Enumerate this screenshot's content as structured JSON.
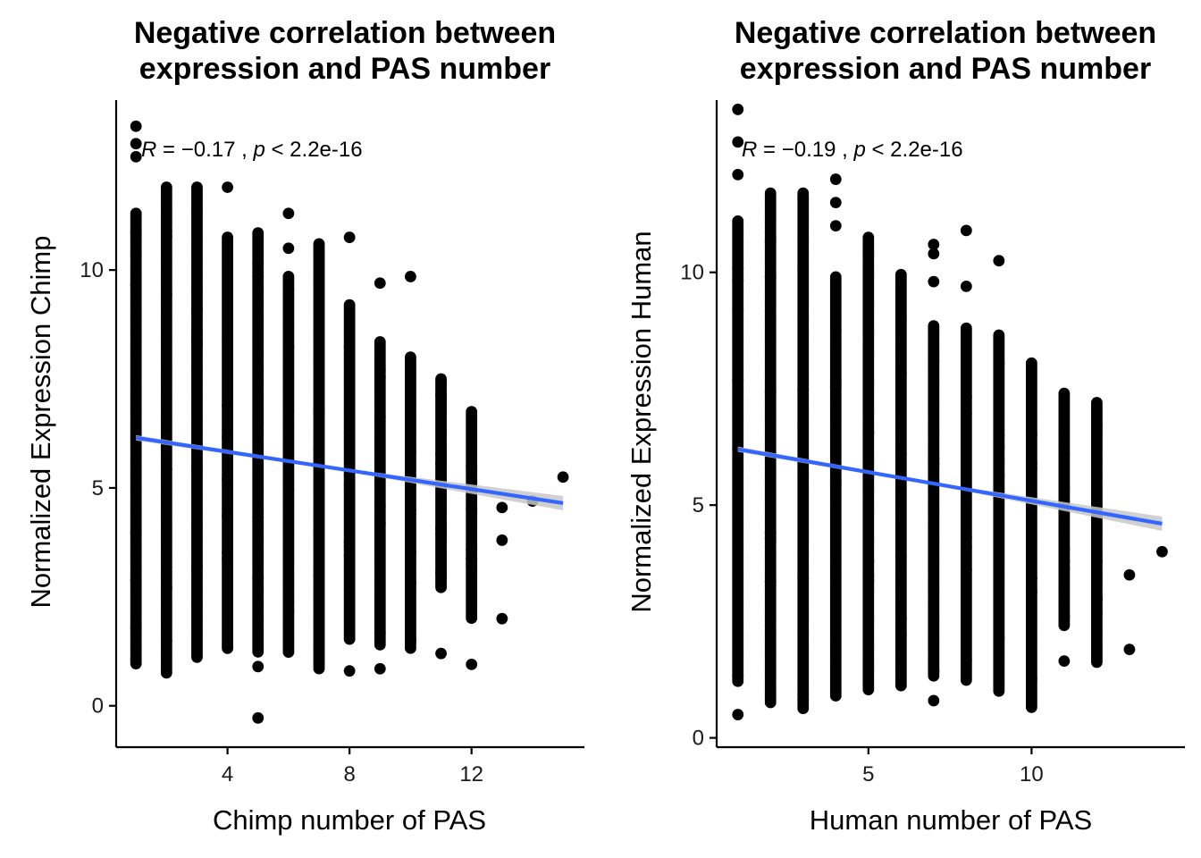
{
  "chart_data": [
    {
      "type": "scatter",
      "title": [
        "Negative correlation between",
        "expression and PAS number"
      ],
      "xlabel": "Chimp number of PAS",
      "ylabel": "Normalized Expression Chimp",
      "xlim": [
        0.35,
        15.7
      ],
      "ylim": [
        -0.95,
        13.9
      ],
      "xticks": [
        4,
        8,
        12
      ],
      "yticks": [
        0,
        5,
        10
      ],
      "annotation": {
        "r": "−0.17",
        "p": "2.2e-16"
      },
      "grid": false,
      "legend": "none",
      "point_color": "#000000",
      "fit_color": "#3366FF",
      "fit_line": {
        "x": [
          1,
          15
        ],
        "y": [
          6.15,
          4.65
        ]
      },
      "columns": [
        {
          "x": 1,
          "min": 0.95,
          "max": 11.3,
          "outliers": [
            1.05,
            12.6,
            12.9,
            13.3
          ]
        },
        {
          "x": 2,
          "min": 0.75,
          "max": 11.9,
          "outliers": []
        },
        {
          "x": 3,
          "min": 1.1,
          "max": 11.9,
          "outliers": []
        },
        {
          "x": 4,
          "min": 1.3,
          "max": 10.75,
          "outliers": [
            11.9
          ]
        },
        {
          "x": 5,
          "min": 1.2,
          "max": 10.85,
          "outliers": [
            0.9,
            -0.28
          ]
        },
        {
          "x": 6,
          "min": 1.2,
          "max": 9.85,
          "outliers": [
            10.5,
            11.3
          ]
        },
        {
          "x": 7,
          "min": 0.85,
          "max": 10.6,
          "outliers": []
        },
        {
          "x": 8,
          "min": 1.5,
          "max": 9.2,
          "outliers": [
            0.8,
            10.75
          ]
        },
        {
          "x": 9,
          "min": 1.4,
          "max": 8.35,
          "outliers": [
            0.85,
            9.7
          ]
        },
        {
          "x": 10,
          "min": 1.3,
          "max": 8.0,
          "outliers": [
            9.85
          ]
        },
        {
          "x": 11,
          "min": 2.7,
          "max": 7.5,
          "outliers": [
            1.2
          ]
        },
        {
          "x": 12,
          "min": 2.0,
          "max": 6.75,
          "outliers": [
            0.95
          ]
        }
      ],
      "points": [
        [
          13,
          4.55
        ],
        [
          13,
          3.8
        ],
        [
          13,
          2.0
        ],
        [
          14,
          4.7
        ],
        [
          15,
          5.25
        ]
      ]
    },
    {
      "type": "scatter",
      "title": [
        "Negative correlation between",
        "expression and PAS number"
      ],
      "xlabel": "Human number of PAS",
      "ylabel": "Normalized Expression Human",
      "xlim": [
        0.35,
        14.7
      ],
      "ylim": [
        -0.2,
        13.7
      ],
      "xticks": [
        5,
        10
      ],
      "yticks": [
        0,
        5,
        10
      ],
      "annotation": {
        "r": "−0.19",
        "p": "2.2e-16"
      },
      "grid": false,
      "legend": "none",
      "point_color": "#000000",
      "fit_color": "#3366FF",
      "fit_line": {
        "x": [
          1,
          14
        ],
        "y": [
          6.2,
          4.6
        ]
      },
      "columns": [
        {
          "x": 1,
          "min": 1.2,
          "max": 11.1,
          "outliers": [
            0.5,
            12.1,
            12.8,
            13.5
          ]
        },
        {
          "x": 2,
          "min": 0.75,
          "max": 11.7,
          "outliers": []
        },
        {
          "x": 3,
          "min": 0.6,
          "max": 11.7,
          "outliers": []
        },
        {
          "x": 4,
          "min": 0.9,
          "max": 9.9,
          "outliers": [
            11.0,
            11.5,
            12.0
          ]
        },
        {
          "x": 5,
          "min": 1.0,
          "max": 10.75,
          "outliers": []
        },
        {
          "x": 6,
          "min": 1.1,
          "max": 9.95,
          "outliers": []
        },
        {
          "x": 7,
          "min": 1.3,
          "max": 8.85,
          "outliers": [
            0.8,
            9.8,
            10.4,
            10.6
          ]
        },
        {
          "x": 8,
          "min": 1.2,
          "max": 8.8,
          "outliers": [
            9.7,
            10.9
          ]
        },
        {
          "x": 9,
          "min": 1.0,
          "max": 8.65,
          "outliers": [
            10.25
          ]
        },
        {
          "x": 10,
          "min": 0.65,
          "max": 8.05,
          "outliers": []
        },
        {
          "x": 11,
          "min": 2.4,
          "max": 7.4,
          "outliers": [
            1.65
          ]
        },
        {
          "x": 12,
          "min": 1.6,
          "max": 7.2,
          "outliers": []
        }
      ],
      "points": [
        [
          13,
          3.5
        ],
        [
          13,
          1.9
        ],
        [
          14,
          4.0
        ]
      ]
    }
  ]
}
